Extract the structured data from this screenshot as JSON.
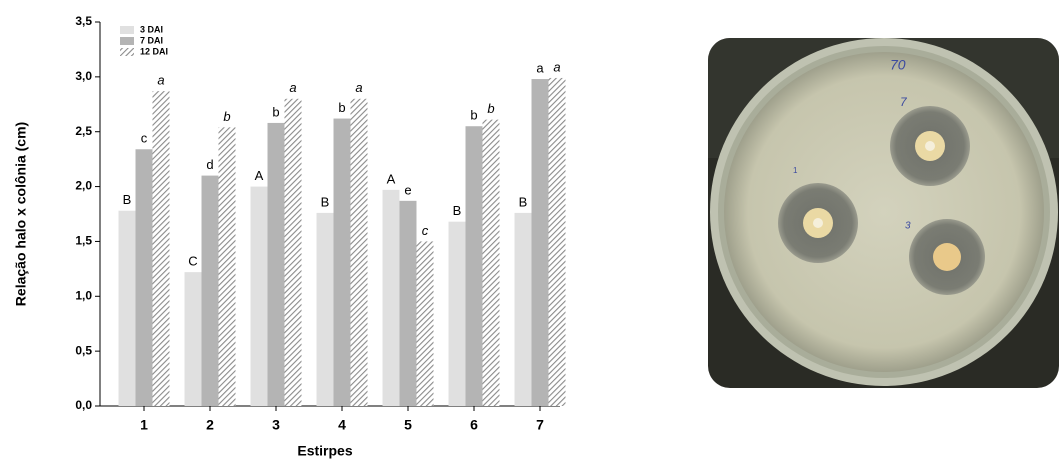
{
  "chart_data": {
    "type": "bar",
    "x_label": "Estirpes",
    "y_label": "Relação halo x colônia (cm)",
    "categories": [
      "1",
      "2",
      "3",
      "4",
      "5",
      "6",
      "7"
    ],
    "series": [
      {
        "name": "3 DAI",
        "color": "#e0e0e0",
        "hatch": false,
        "italic_letters": false,
        "values": [
          1.78,
          1.22,
          2.0,
          1.76,
          1.97,
          1.68,
          1.76
        ],
        "letters": [
          "B",
          "C",
          "A",
          "B",
          "A",
          "B",
          "B"
        ]
      },
      {
        "name": "7 DAI",
        "color": "#b4b4b4",
        "hatch": false,
        "italic_letters": false,
        "values": [
          2.34,
          2.1,
          2.58,
          2.62,
          1.87,
          2.55,
          2.98
        ],
        "letters": [
          "c",
          "d",
          "b",
          "b",
          "e",
          "b",
          "a"
        ]
      },
      {
        "name": "12 DAI",
        "color": "#8a8a8a",
        "hatch": true,
        "italic_letters": true,
        "values": [
          2.87,
          2.54,
          2.8,
          2.8,
          1.5,
          2.61,
          2.99
        ],
        "letters": [
          "a",
          "b",
          "a",
          "a",
          "c",
          "b",
          "a"
        ]
      }
    ],
    "ylim": [
      0,
      3.5
    ],
    "yticks": [
      {
        "value": 0,
        "label": "0,0"
      },
      {
        "value": 0.5,
        "label": "0,5"
      },
      {
        "value": 1,
        "label": "1,0"
      },
      {
        "value": 1.5,
        "label": "1,5"
      },
      {
        "value": 2,
        "label": "2,0"
      },
      {
        "value": 2.5,
        "label": "2,5"
      },
      {
        "value": 3,
        "label": "3,0"
      },
      {
        "value": 3.5,
        "label": "3,5"
      }
    ],
    "grid": false,
    "legend": "upper left"
  },
  "photo": {
    "labels": [
      "70",
      "7",
      "1",
      "3"
    ]
  }
}
